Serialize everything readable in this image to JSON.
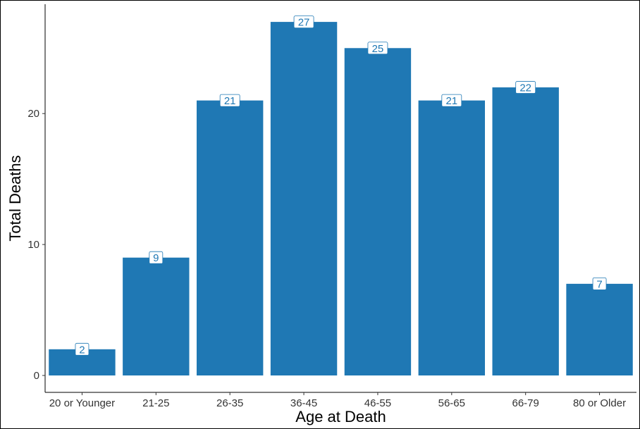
{
  "chart_data": {
    "type": "bar",
    "title": "",
    "xlabel": "Age at Death",
    "ylabel": "Total Deaths",
    "categories": [
      "20 or Younger",
      "21-25",
      "26-35",
      "36-45",
      "46-55",
      "56-65",
      "66-79",
      "80 or Older"
    ],
    "values": [
      2,
      9,
      21,
      27,
      25,
      21,
      22,
      7
    ],
    "ylim": [
      0,
      28.35
    ],
    "yticks": [
      0,
      10,
      20
    ],
    "grid": false,
    "legend": "none",
    "bar_color": "#1f78b4",
    "label_text_color": "#1f78b4",
    "label_box_color": "#ffffff"
  }
}
